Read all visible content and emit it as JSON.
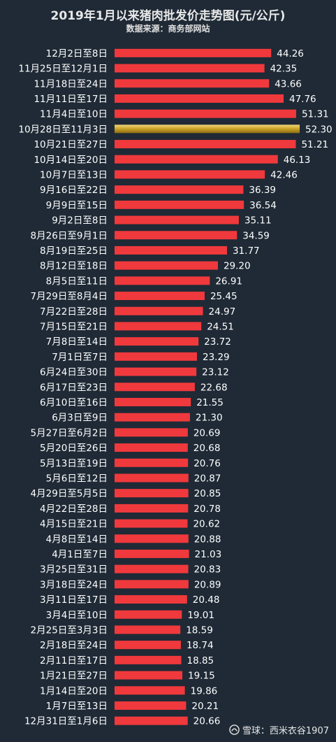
{
  "chart_data": {
    "type": "bar",
    "orientation": "horizontal",
    "title": "2019年1月以来猪肉批发价走势图(元/公斤)",
    "subtitle": "数据来源：商务部网站",
    "categories": [
      "12月2日至8日",
      "11月25日至12月1日",
      "11月18日至24日",
      "11月11日至17日",
      "11月4日至10日",
      "10月28日至11月3日",
      "10月21日至27日",
      "10月14日至20日",
      "10月7日至13日",
      "9月16日至22日",
      "9月9日至15日",
      "9月2日至8日",
      "8月26日至9月1日",
      "8月19日至25日",
      "8月12日至18日",
      "8月5日至11日",
      "7月29日至8月4日",
      "7月22日至28日",
      "7月15日至21日",
      "7月8日至14日",
      "7月1日至7日",
      "6月24日至30日",
      "6月17日至23日",
      "6月10日至16日",
      "6月3日至9日",
      "5月27日至6月2日",
      "5月20日至26日",
      "5月13日至19日",
      "5月6日至12日",
      "4月29日至5月5日",
      "4月22日至28日",
      "4月15日至21日",
      "4月8日至14日",
      "4月1日至7日",
      "3月25日至31日",
      "3月18日至24日",
      "3月11日至17日",
      "3月4日至10日",
      "2月25日至3月3日",
      "2月18日至24日",
      "2月11日至17日",
      "1月21日至27日",
      "1月14日至20日",
      "1月7日至13日",
      "12月31日至1月6日"
    ],
    "values": [
      44.26,
      42.35,
      43.66,
      47.76,
      51.31,
      52.3,
      51.21,
      46.13,
      42.46,
      36.39,
      36.54,
      35.11,
      34.59,
      31.77,
      29.2,
      26.91,
      25.45,
      24.97,
      24.51,
      23.72,
      23.29,
      23.12,
      22.68,
      21.55,
      21.3,
      20.69,
      20.68,
      20.76,
      20.87,
      20.85,
      20.78,
      20.62,
      20.88,
      21.03,
      20.83,
      20.89,
      20.48,
      19.01,
      18.59,
      18.74,
      18.85,
      19.15,
      19.86,
      20.21,
      20.66
    ],
    "value_labels": [
      "44.26",
      "42.35",
      "43.66",
      "47.76",
      "51.31",
      "52.30",
      "51.21",
      "46.13",
      "42.46",
      "36.39",
      "36.54",
      "35.11",
      "34.59",
      "31.77",
      "29.20",
      "26.91",
      "25.45",
      "24.97",
      "24.51",
      "23.72",
      "23.29",
      "23.12",
      "22.68",
      "21.55",
      "21.30",
      "20.69",
      "20.68",
      "20.76",
      "20.87",
      "20.85",
      "20.78",
      "20.62",
      "20.88",
      "21.03",
      "20.83",
      "20.89",
      "20.48",
      "19.01",
      "18.59",
      "18.74",
      "18.85",
      "19.15",
      "19.86",
      "20.21",
      "20.66"
    ],
    "highlight_index": 5,
    "xlim": [
      0,
      52.3
    ],
    "grid": false,
    "legend": "none",
    "colors": {
      "bar": "#f0393c",
      "highlight_start": "#f3d77a",
      "highlight_mid": "#c9a227",
      "highlight_end": "#8a6b12",
      "background": "#1f2a36"
    }
  },
  "watermark": {
    "icon": "snowball-icon",
    "text": "雪球：西米衣谷1907"
  }
}
